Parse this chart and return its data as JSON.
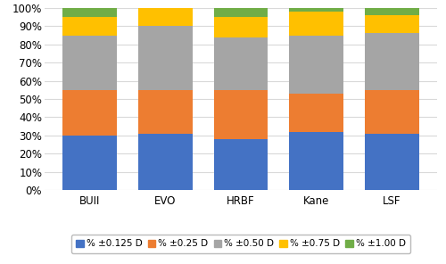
{
  "categories": [
    "BUII",
    "EVO",
    "HRBF",
    "Kane",
    "LSF"
  ],
  "series": [
    {
      "label": "% ±0.125 D",
      "color": "#4472C4",
      "values": [
        30,
        31,
        28,
        32,
        31
      ]
    },
    {
      "label": "% ±0.25 D",
      "color": "#ED7D31",
      "values": [
        25,
        24,
        27,
        21,
        24
      ]
    },
    {
      "label": "% ±0.50 D",
      "color": "#A5A5A5",
      "values": [
        30,
        35,
        29,
        32,
        31
      ]
    },
    {
      "label": "% ±0.75 D",
      "color": "#FFC000",
      "values": [
        10,
        10,
        11,
        13,
        10
      ]
    },
    {
      "label": "% ±1.00 D",
      "color": "#70AD47",
      "values": [
        5,
        0,
        5,
        2,
        4
      ]
    }
  ],
  "ylim": [
    0,
    100
  ],
  "yticks": [
    0,
    10,
    20,
    30,
    40,
    50,
    60,
    70,
    80,
    90,
    100
  ],
  "ytick_labels": [
    "0%",
    "10%",
    "20%",
    "30%",
    "40%",
    "50%",
    "60%",
    "70%",
    "80%",
    "90%",
    "100%"
  ],
  "background_color": "#ffffff",
  "grid_color": "#d9d9d9",
  "bar_width": 0.72,
  "legend_fontsize": 7.5,
  "tick_fontsize": 8.5,
  "xpad": 0.6
}
